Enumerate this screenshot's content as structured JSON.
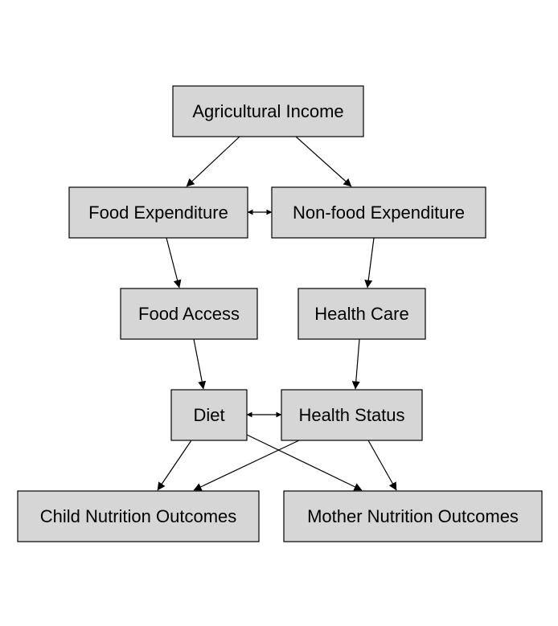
{
  "nodes": {
    "agricultural_income": "Agricultural Income",
    "food_expenditure": "Food Expenditure",
    "nonfood_expenditure": "Non-food Expenditure",
    "food_access": "Food Access",
    "health_care": "Health Care",
    "diet": "Diet",
    "health_status": "Health Status",
    "child_nutrition": "Child Nutrition Outcomes",
    "mother_nutrition": "Mother Nutrition Outcomes"
  },
  "edges": [
    {
      "from": "Agricultural Income",
      "to": "Food Expenditure",
      "direction": "forward"
    },
    {
      "from": "Agricultural Income",
      "to": "Non-food Expenditure",
      "direction": "forward"
    },
    {
      "from": "Food Expenditure",
      "to": "Non-food Expenditure",
      "direction": "both"
    },
    {
      "from": "Food Expenditure",
      "to": "Food Access",
      "direction": "forward"
    },
    {
      "from": "Non-food Expenditure",
      "to": "Health Care",
      "direction": "forward"
    },
    {
      "from": "Food Access",
      "to": "Diet",
      "direction": "forward"
    },
    {
      "from": "Health Care",
      "to": "Health Status",
      "direction": "forward"
    },
    {
      "from": "Diet",
      "to": "Health Status",
      "direction": "both"
    },
    {
      "from": "Diet",
      "to": "Child Nutrition Outcomes",
      "direction": "forward"
    },
    {
      "from": "Diet",
      "to": "Mother Nutrition Outcomes",
      "direction": "forward"
    },
    {
      "from": "Health Status",
      "to": "Child Nutrition Outcomes",
      "direction": "forward"
    },
    {
      "from": "Health Status",
      "to": "Mother Nutrition Outcomes",
      "direction": "forward"
    }
  ],
  "colors": {
    "node_fill": "#d6d6d6",
    "node_stroke": "#000000",
    "edge": "#000000",
    "background": "#ffffff"
  }
}
